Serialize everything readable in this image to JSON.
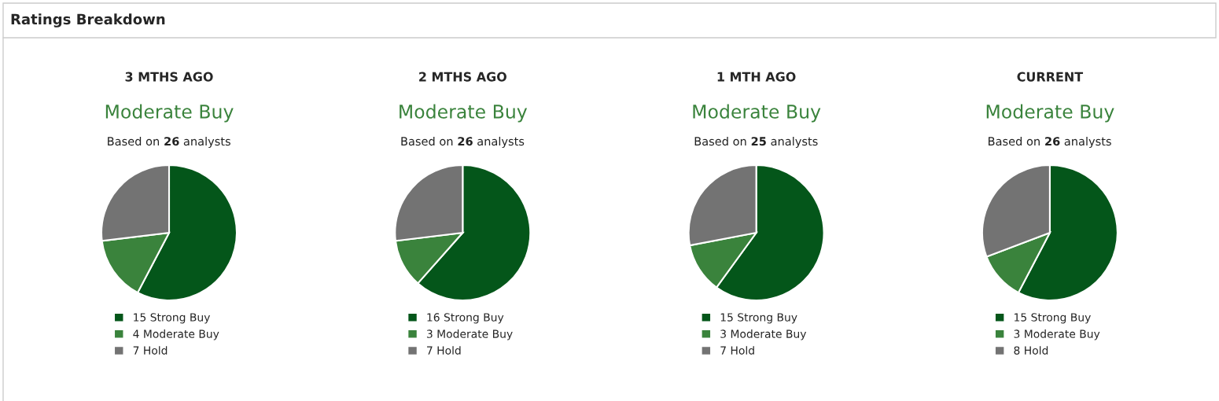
{
  "chart_data": [
    {
      "type": "other",
      "title": "Ratings Breakdown"
    },
    {
      "type": "pie",
      "title": "3 MTHS AGO",
      "subtitle": "Moderate Buy",
      "annotations": [
        "Based on 26 analysts"
      ],
      "categories": [
        "15 Strong Buy",
        "4 Moderate Buy",
        "7 Hold"
      ],
      "values": [
        15,
        4,
        7
      ],
      "colors": [
        "#04561a",
        "#3a833c",
        "#737373"
      ],
      "legend": "bottom"
    },
    {
      "type": "pie",
      "title": "2 MTHS AGO",
      "subtitle": "Moderate Buy",
      "annotations": [
        "Based on 26 analysts"
      ],
      "categories": [
        "16 Strong Buy",
        "3 Moderate Buy",
        "7 Hold"
      ],
      "values": [
        16,
        3,
        7
      ],
      "colors": [
        "#04561a",
        "#3a833c",
        "#737373"
      ],
      "legend": "bottom"
    },
    {
      "type": "pie",
      "title": "1 MTH AGO",
      "subtitle": "Moderate Buy",
      "annotations": [
        "Based on 25 analysts"
      ],
      "categories": [
        "15 Strong Buy",
        "3 Moderate Buy",
        "7 Hold"
      ],
      "values": [
        15,
        3,
        7
      ],
      "colors": [
        "#04561a",
        "#3a833c",
        "#737373"
      ],
      "legend": "bottom"
    },
    {
      "type": "pie",
      "title": "CURRENT",
      "subtitle": "Moderate Buy",
      "annotations": [
        "Based on 26 analysts"
      ],
      "categories": [
        "15 Strong Buy",
        "3 Moderate Buy",
        "8 Hold"
      ],
      "values": [
        15,
        3,
        8
      ],
      "colors": [
        "#04561a",
        "#3a833c",
        "#737373"
      ],
      "legend": "bottom"
    }
  ]
}
